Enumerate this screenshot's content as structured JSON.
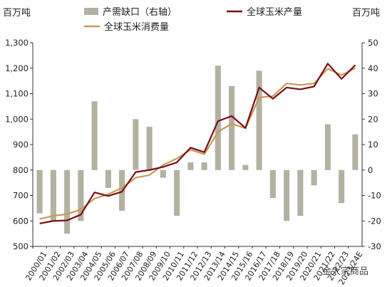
{
  "chart_data": {
    "type": "bar+line",
    "left_axis": {
      "label": "百万吨",
      "range": [
        500,
        1300
      ],
      "ticks": [
        "500",
        "600",
        "700",
        "800",
        "900",
        "1,000",
        "1,100",
        "1,200",
        "1,300"
      ]
    },
    "right_axis": {
      "label": "百万吨",
      "range": [
        -30,
        50
      ],
      "ticks": [
        "-30",
        "-20",
        "-10",
        "0",
        "10",
        "20",
        "30",
        "40",
        "50"
      ]
    },
    "categories": [
      "2000/01",
      "2001/02",
      "2002/03",
      "2003/04",
      "2004/05",
      "2005/06",
      "2006/07",
      "2007/08",
      "2008/09",
      "2009/10",
      "2010/11",
      "2011/12",
      "2012/13",
      "2013/14",
      "2014/15",
      "2015/16",
      "2016/17",
      "2017/18",
      "2018/19",
      "2019/20",
      "2020/21",
      "2021/22",
      "2022/23",
      "2023/24E"
    ],
    "series": [
      {
        "name": "产需缺口（右轴）",
        "type": "bar",
        "axis": "right",
        "color": "#b4b1a1",
        "values": [
          -17,
          -20,
          -25,
          -20,
          27,
          -7,
          -16,
          20,
          17,
          -3,
          -18,
          3,
          3,
          41,
          33,
          2,
          39,
          -11,
          -20,
          -18,
          -6,
          18,
          -13,
          14
        ]
      },
      {
        "name": "全球玉米产量",
        "type": "line",
        "axis": "left",
        "color": "#7a0f16",
        "values": [
          590,
          600,
          602,
          625,
          712,
          698,
          715,
          792,
          800,
          812,
          830,
          888,
          870,
          992,
          1012,
          965,
          1124,
          1080,
          1124,
          1117,
          1128,
          1218,
          1158,
          1212
        ]
      },
      {
        "name": "全球玉米消费量",
        "type": "line",
        "axis": "left",
        "color": "#c89a55",
        "values": [
          608,
          620,
          627,
          645,
          688,
          705,
          730,
          770,
          780,
          820,
          845,
          880,
          862,
          950,
          982,
          964,
          1085,
          1090,
          1140,
          1134,
          1140,
          1198,
          1173,
          1200
        ]
      }
    ],
    "watermark": "金大宗商品"
  }
}
